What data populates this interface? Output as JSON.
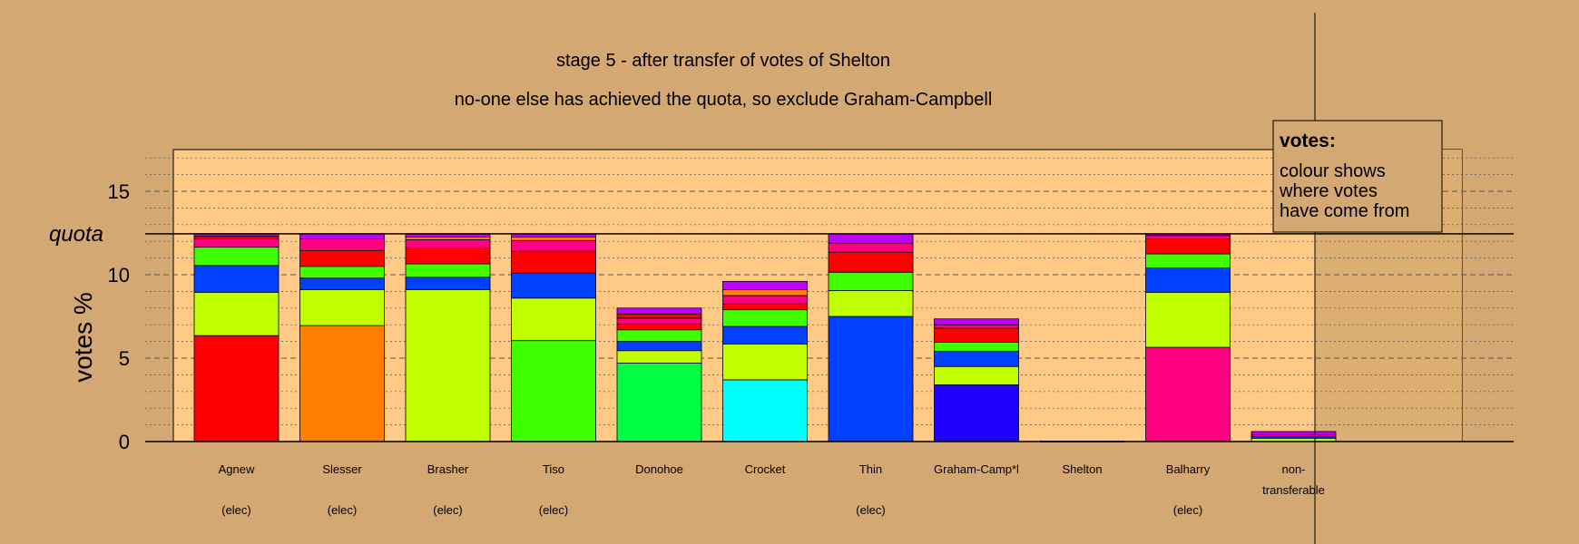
{
  "chart_data": {
    "type": "bar",
    "stacked": true,
    "title": "stage 5 - after transfer of votes of Shelton",
    "subtitle": "no-one else has achieved the quota, so exclude Graham-Campbell",
    "ylabel": "votes %",
    "quota_label": "quota",
    "quota_value": 12.45,
    "ylim": [
      0,
      17.5
    ],
    "yticks": [
      "0",
      "5",
      "10",
      "15"
    ],
    "grid": "horizontal",
    "legend": {
      "title": "votes:",
      "lines": [
        "colour shows",
        "where votes",
        "have come from"
      ],
      "position": "top-right"
    },
    "source_colors": {
      "Agnew": "#ff0000",
      "Slesser": "#ff8000",
      "Brasher": "#bfff00",
      "Tiso": "#40ff00",
      "Donohoe": "#00ff40",
      "Crocket": "#00ffff",
      "Thin": "#0040ff",
      "Graham-Campbell": "#2000ff",
      "Shelton": "#bf00ff",
      "Balharry": "#ff0080"
    },
    "candidates": [
      {
        "name": "Agnew",
        "status": "(elec)",
        "segments": [
          {
            "from": "Agnew",
            "value": 6.35
          },
          {
            "from": "Brasher",
            "value": 2.6
          },
          {
            "from": "Thin",
            "value": 1.6
          },
          {
            "from": "Tiso",
            "value": 1.1
          },
          {
            "from": "Balharry",
            "value": 0.5
          },
          {
            "from": "Agnew",
            "value": 0.15
          },
          {
            "from": "Shelton",
            "value": 0.15
          }
        ]
      },
      {
        "name": "Slesser",
        "status": "(elec)",
        "segments": [
          {
            "from": "Slesser",
            "value": 6.95
          },
          {
            "from": "Brasher",
            "value": 2.15
          },
          {
            "from": "Thin",
            "value": 0.7
          },
          {
            "from": "Tiso",
            "value": 0.7
          },
          {
            "from": "Agnew",
            "value": 0.95
          },
          {
            "from": "Balharry",
            "value": 0.7
          },
          {
            "from": "Shelton",
            "value": 0.3
          }
        ]
      },
      {
        "name": "Brasher",
        "status": "(elec)",
        "segments": [
          {
            "from": "Brasher",
            "value": 9.1
          },
          {
            "from": "Thin",
            "value": 0.75
          },
          {
            "from": "Tiso",
            "value": 0.8
          },
          {
            "from": "Agnew",
            "value": 0.95
          },
          {
            "from": "Balharry",
            "value": 0.5
          },
          {
            "from": "Slesser",
            "value": 0.15
          },
          {
            "from": "Shelton",
            "value": 0.2
          }
        ]
      },
      {
        "name": "Tiso",
        "status": "(elec)",
        "segments": [
          {
            "from": "Tiso",
            "value": 6.05
          },
          {
            "from": "Brasher",
            "value": 2.55
          },
          {
            "from": "Thin",
            "value": 1.5
          },
          {
            "from": "Agnew",
            "value": 1.3
          },
          {
            "from": "Balharry",
            "value": 0.65
          },
          {
            "from": "Slesser",
            "value": 0.2
          },
          {
            "from": "Shelton",
            "value": 0.2
          }
        ]
      },
      {
        "name": "Donohoe",
        "status": "",
        "segments": [
          {
            "from": "Donohoe",
            "value": 4.7
          },
          {
            "from": "Brasher",
            "value": 0.75
          },
          {
            "from": "Thin",
            "value": 0.55
          },
          {
            "from": "Tiso",
            "value": 0.7
          },
          {
            "from": "Agnew",
            "value": 0.35
          },
          {
            "from": "Balharry",
            "value": 0.35
          },
          {
            "from": "Agnew",
            "value": 0.25
          },
          {
            "from": "Shelton",
            "value": 0.35
          }
        ]
      },
      {
        "name": "Crocket",
        "status": "",
        "segments": [
          {
            "from": "Crocket",
            "value": 3.7
          },
          {
            "from": "Brasher",
            "value": 2.15
          },
          {
            "from": "Thin",
            "value": 1.05
          },
          {
            "from": "Tiso",
            "value": 1.0
          },
          {
            "from": "Agnew",
            "value": 0.35
          },
          {
            "from": "Balharry",
            "value": 0.5
          },
          {
            "from": "Slesser",
            "value": 0.35
          },
          {
            "from": "Shelton",
            "value": 0.5
          }
        ]
      },
      {
        "name": "Thin",
        "status": "(elec)",
        "segments": [
          {
            "from": "Thin",
            "value": 7.5
          },
          {
            "from": "Brasher",
            "value": 1.55
          },
          {
            "from": "Tiso",
            "value": 1.1
          },
          {
            "from": "Agnew",
            "value": 1.2
          },
          {
            "from": "Balharry",
            "value": 0.55
          },
          {
            "from": "Shelton",
            "value": 0.55
          }
        ]
      },
      {
        "name": "Graham-Camp*l",
        "status": "",
        "segments": [
          {
            "from": "Graham-Campbell",
            "value": 3.4
          },
          {
            "from": "Brasher",
            "value": 1.1
          },
          {
            "from": "Thin",
            "value": 0.9
          },
          {
            "from": "Tiso",
            "value": 0.55
          },
          {
            "from": "Agnew",
            "value": 0.85
          },
          {
            "from": "Balharry",
            "value": 0.2
          },
          {
            "from": "Shelton",
            "value": 0.35
          }
        ]
      },
      {
        "name": "Shelton",
        "status": "",
        "segments": []
      },
      {
        "name": "Balharry",
        "status": "(elec)",
        "segments": [
          {
            "from": "Balharry",
            "value": 5.65
          },
          {
            "from": "Brasher",
            "value": 3.3
          },
          {
            "from": "Thin",
            "value": 1.45
          },
          {
            "from": "Tiso",
            "value": 0.85
          },
          {
            "from": "Agnew",
            "value": 0.9
          },
          {
            "from": "Balharry",
            "value": 0.2
          },
          {
            "from": "Shelton",
            "value": 0.1
          }
        ]
      },
      {
        "name": "non-transferable",
        "label_lines": [
          "non-",
          "transferable"
        ],
        "status": "",
        "segments": [
          {
            "from": "Brasher",
            "value": 0.2
          },
          {
            "from": "Thin",
            "value": 0.1
          },
          {
            "from": "Balharry",
            "value": 0.1
          },
          {
            "from": "Shelton",
            "value": 0.2
          }
        ]
      }
    ]
  }
}
